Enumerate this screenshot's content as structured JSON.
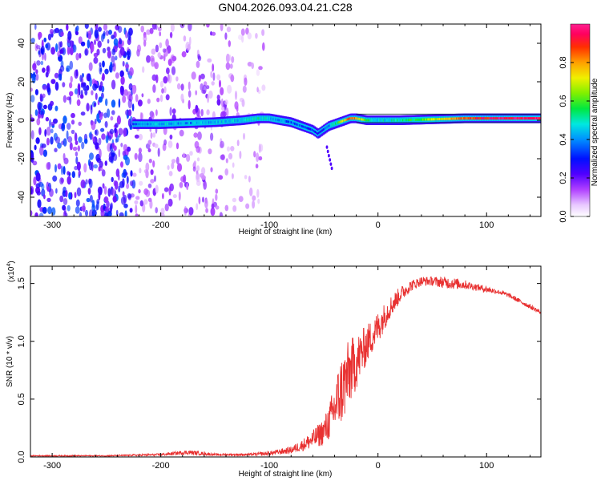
{
  "title": "GN04.2026.093.04.21.C28",
  "chart_data": [
    {
      "type": "heatmap",
      "name": "spectrogram",
      "xlabel": "Height of straight line (km)",
      "ylabel": "Frequency (Hz)",
      "xlim": [
        -320,
        150
      ],
      "ylim": [
        -50,
        50
      ],
      "x_ticks": [
        -300,
        -200,
        -100,
        0,
        100
      ],
      "x_tick_labels": [
        "-300",
        "-200",
        "-100",
        "0",
        "100"
      ],
      "y_ticks": [
        -40,
        -20,
        0,
        20,
        40
      ],
      "y_tick_labels": [
        "-40",
        "-20",
        "0",
        "20",
        "40"
      ],
      "signal_track": {
        "x": [
          -225,
          -200,
          -175,
          -150,
          -125,
          -110,
          -100,
          -90,
          -80,
          -70,
          -60,
          -55,
          -50,
          -45,
          -40,
          -35,
          -30,
          -25,
          -20,
          -10,
          0,
          20,
          50,
          80,
          110,
          150
        ],
        "frequency": [
          -2,
          -2,
          -1.5,
          -1,
          0,
          1,
          1,
          0,
          -1,
          -3,
          -5,
          -7,
          -5,
          -3,
          -2,
          -1,
          0,
          1,
          1,
          0,
          0,
          0,
          0.5,
          1,
          1,
          1
        ],
        "amplitude": [
          0.35,
          0.45,
          0.4,
          0.45,
          0.45,
          0.5,
          0.45,
          0.4,
          0.35,
          0.35,
          0.3,
          0.25,
          0.3,
          0.4,
          0.5,
          0.6,
          0.75,
          0.85,
          0.8,
          0.6,
          0.45,
          0.5,
          0.65,
          0.85,
          0.95,
          0.95
        ]
      },
      "noise_regions": [
        {
          "from": -320,
          "to": -225,
          "level": "high"
        },
        {
          "from": -225,
          "to": -140,
          "level": "medium"
        },
        {
          "from": -140,
          "to": -105,
          "level": "low"
        }
      ],
      "colorbar": {
        "label": "Normalized spectral amplitude",
        "range": [
          0,
          1
        ],
        "ticks": [
          0.0,
          0.2,
          0.4,
          0.6,
          0.8
        ],
        "tick_labels": [
          "0.0",
          "0.2",
          "0.4",
          "0.6",
          "0.8"
        ]
      }
    },
    {
      "type": "line",
      "name": "snr",
      "xlabel": "Height of straight line (km)",
      "ylabel": "SNR (10 * v/v)",
      "y_multiplier": "(x10",
      "y_multiplier_exp": "4",
      "y_multiplier_close": ")",
      "xlim": [
        -320,
        150
      ],
      "ylim": [
        0,
        1.65
      ],
      "x_ticks": [
        -300,
        -200,
        -100,
        0,
        100
      ],
      "x_tick_labels": [
        "-300",
        "-200",
        "-100",
        "0",
        "100"
      ],
      "y_ticks": [
        0,
        0.5,
        1.0,
        1.5
      ],
      "y_tick_labels": [
        "0.0",
        "0.5",
        "1.0",
        "1.5"
      ],
      "color": "#e83030",
      "series": [
        {
          "name": "SNR",
          "x": [
            -320,
            -250,
            -200,
            -175,
            -150,
            -120,
            -100,
            -80,
            -70,
            -60,
            -50,
            -45,
            -40,
            -35,
            -30,
            -25,
            -20,
            -15,
            -10,
            -5,
            0,
            10,
            20,
            30,
            40,
            50,
            60,
            70,
            80,
            90,
            100,
            110,
            120,
            130,
            140,
            150
          ],
          "y": [
            0.01,
            0.01,
            0.02,
            0.04,
            0.02,
            0.02,
            0.03,
            0.06,
            0.1,
            0.15,
            0.22,
            0.3,
            0.42,
            0.55,
            0.65,
            0.75,
            0.82,
            0.9,
            0.98,
            1.05,
            1.12,
            1.28,
            1.4,
            1.48,
            1.52,
            1.52,
            1.51,
            1.5,
            1.49,
            1.47,
            1.45,
            1.43,
            1.4,
            1.35,
            1.3,
            1.25
          ],
          "noise": [
            0.005,
            0.005,
            0.01,
            0.02,
            0.01,
            0.01,
            0.02,
            0.03,
            0.05,
            0.08,
            0.12,
            0.16,
            0.22,
            0.3,
            0.32,
            0.28,
            0.24,
            0.2,
            0.17,
            0.15,
            0.14,
            0.1,
            0.07,
            0.05,
            0.04,
            0.04,
            0.05,
            0.05,
            0.04,
            0.03,
            0.03,
            0.02,
            0.02,
            0.02,
            0.02,
            0.02
          ]
        }
      ]
    }
  ]
}
